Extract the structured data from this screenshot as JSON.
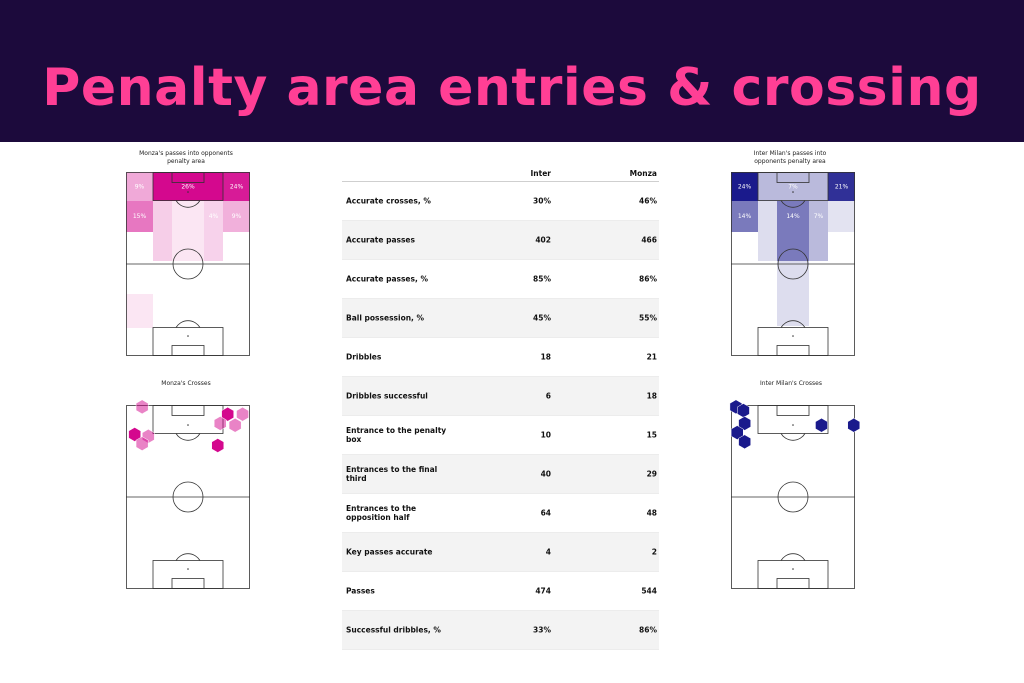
{
  "header": {
    "title": "Penalty area entries & crossing"
  },
  "colors": {
    "banner": "#1c0a3c",
    "title": "#ff3f95",
    "monza": "#d4088e",
    "inter": "#1a1a8c"
  },
  "chart_data": [
    {
      "type": "heatmap",
      "title": "Monza's passes into opponents penalty area",
      "color": "#d4088e",
      "zones": [
        {
          "zone": "box-left-top",
          "value": 9,
          "label": "9%",
          "op": 0.35
        },
        {
          "zone": "box-center-top",
          "value": 26,
          "label": "26%",
          "op": 1.0
        },
        {
          "zone": "box-right-top",
          "value": 24,
          "label": "24%",
          "op": 0.92
        },
        {
          "zone": "box-left",
          "value": 15,
          "label": "15%",
          "op": 0.55
        },
        {
          "zone": "box-center-left",
          "value": 0,
          "label": "",
          "op": 0.2
        },
        {
          "zone": "box-center",
          "value": 0,
          "label": "",
          "op": 0.1
        },
        {
          "zone": "box-center-right",
          "value": 4,
          "label": "4%",
          "op": 0.18
        },
        {
          "zone": "box-right",
          "value": 9,
          "label": "9%",
          "op": 0.32
        },
        {
          "zone": "mid-left-low",
          "value": 0,
          "label": "",
          "op": 0.1
        }
      ]
    },
    {
      "type": "heatmap",
      "title": "Inter Milan's passes into opponents penalty area",
      "color": "#1a1a8c",
      "zones": [
        {
          "zone": "box-left-top",
          "value": 24,
          "label": "24%",
          "op": 1.0
        },
        {
          "zone": "box-center-top",
          "value": 7,
          "label": "7%",
          "op": 0.3
        },
        {
          "zone": "box-right-top",
          "value": 21,
          "label": "21%",
          "op": 0.9
        },
        {
          "zone": "box-left",
          "value": 14,
          "label": "14%",
          "op": 0.58
        },
        {
          "zone": "box-center-left",
          "value": 0,
          "label": "",
          "op": 0.15
        },
        {
          "zone": "box-center",
          "value": 14,
          "label": "14%",
          "op": 0.58
        },
        {
          "zone": "box-center-right",
          "value": 7,
          "label": "7%",
          "op": 0.3
        },
        {
          "zone": "box-right",
          "value": 0,
          "label": "",
          "op": 0.12
        },
        {
          "zone": "mid-center",
          "value": 0,
          "label": "",
          "op": 0.15
        }
      ]
    },
    {
      "type": "scatter",
      "title": "Monza's Crosses",
      "color": "#d4088e",
      "points": [
        {
          "x": 0.13,
          "y": 0.01,
          "op": 0.5
        },
        {
          "x": 0.82,
          "y": 0.05,
          "op": 1.0
        },
        {
          "x": 0.94,
          "y": 0.05,
          "op": 0.5
        },
        {
          "x": 0.76,
          "y": 0.1,
          "op": 0.5
        },
        {
          "x": 0.88,
          "y": 0.11,
          "op": 0.5
        },
        {
          "x": 0.07,
          "y": 0.16,
          "op": 1.0
        },
        {
          "x": 0.18,
          "y": 0.17,
          "op": 0.5
        },
        {
          "x": 0.13,
          "y": 0.21,
          "op": 0.5
        },
        {
          "x": 0.74,
          "y": 0.22,
          "op": 1.0
        }
      ]
    },
    {
      "type": "scatter",
      "title": "Inter Milan's Crosses",
      "color": "#1a1a8c",
      "points": [
        {
          "x": 0.04,
          "y": 0.01,
          "op": 1.0
        },
        {
          "x": 0.1,
          "y": 0.03,
          "op": 1.0
        },
        {
          "x": 0.11,
          "y": 0.1,
          "op": 1.0
        },
        {
          "x": 0.05,
          "y": 0.15,
          "op": 1.0
        },
        {
          "x": 0.11,
          "y": 0.2,
          "op": 1.0
        },
        {
          "x": 0.73,
          "y": 0.11,
          "op": 1.0
        },
        {
          "x": 0.99,
          "y": 0.11,
          "op": 1.0
        }
      ]
    },
    {
      "type": "table",
      "columns": [
        "",
        "Inter",
        "Monza"
      ],
      "rows": [
        {
          "label": "Accurate crosses, %",
          "inter": "30%",
          "monza": "46%"
        },
        {
          "label": "Accurate passes",
          "inter": "402",
          "monza": "466"
        },
        {
          "label": "Accurate passes, %",
          "inter": "85%",
          "monza": "86%"
        },
        {
          "label": "Ball possession, %",
          "inter": "45%",
          "monza": "55%"
        },
        {
          "label": "Dribbles",
          "inter": "18",
          "monza": "21"
        },
        {
          "label": "Dribbles successful",
          "inter": "6",
          "monza": "18"
        },
        {
          "label": "Entrance to the penalty box",
          "inter": "10",
          "monza": "15"
        },
        {
          "label": "Entrances to the final third",
          "inter": "40",
          "monza": "29"
        },
        {
          "label": "Entrances to the opposition half",
          "inter": "64",
          "monza": "48"
        },
        {
          "label": "Key passes accurate",
          "inter": "4",
          "monza": "2"
        },
        {
          "label": "Passes",
          "inter": "474",
          "monza": "544"
        },
        {
          "label": "Successful dribbles, %",
          "inter": "33%",
          "monza": "86%"
        }
      ]
    }
  ]
}
